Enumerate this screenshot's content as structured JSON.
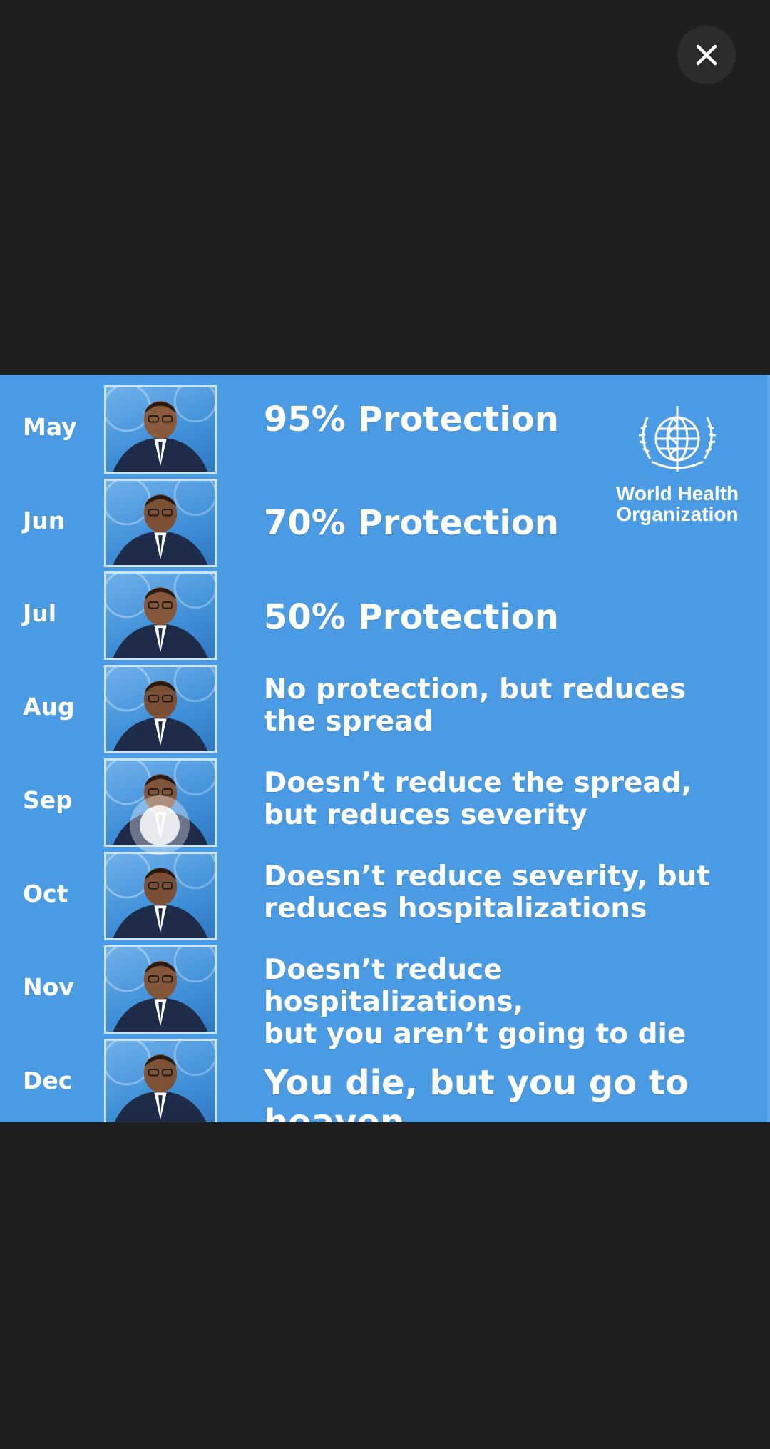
{
  "viewer": {
    "close_icon": "close-icon",
    "close_color": "#ffffff"
  },
  "meme": {
    "background": "#4a9be3",
    "logo": {
      "icon": "who-emblem-icon",
      "line1": "World Health",
      "line2": "Organization"
    },
    "rows": [
      {
        "month": "May",
        "lines": [
          "95% Protection"
        ],
        "size": "big"
      },
      {
        "month": "Jun",
        "lines": [
          "70% Protection"
        ],
        "size": "big"
      },
      {
        "month": "Jul",
        "lines": [
          "50% Protection"
        ],
        "size": "big"
      },
      {
        "month": "Aug",
        "lines": [
          "No protection, but reduces",
          "the spread"
        ],
        "size": "med"
      },
      {
        "month": "Sep",
        "lines": [
          "Doesn’t reduce the spread,",
          "but reduces severity"
        ],
        "size": "med"
      },
      {
        "month": "Oct",
        "lines": [
          "Doesn’t reduce severity, but",
          "reduces hospitalizations"
        ],
        "size": "med"
      },
      {
        "month": "Nov",
        "lines": [
          "Doesn’t reduce hospitalizations,",
          "but you aren’t going to die"
        ],
        "size": "med"
      },
      {
        "month": "Dec",
        "lines": [
          "You die, but you go to heaven"
        ],
        "size": "big"
      }
    ]
  }
}
